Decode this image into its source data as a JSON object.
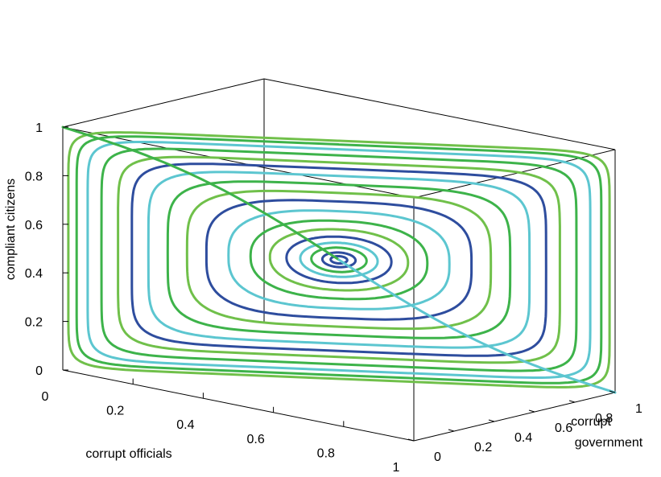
{
  "chart_data": {
    "type": "line",
    "subtype": "3d-phase-portrait",
    "title": "",
    "xlabel": "corrupt officials",
    "ylabel": "corrupt government",
    "zlabel": "compliant citizens",
    "xlim": [
      0,
      1
    ],
    "ylim": [
      0,
      1
    ],
    "zlim": [
      0,
      1
    ],
    "x_ticks": [
      "0",
      "0.2",
      "0.4",
      "0.6",
      "0.8",
      "1"
    ],
    "y_ticks": [
      "0",
      "0.2",
      "0.4",
      "0.6",
      "0.8",
      "1"
    ],
    "z_ticks": [
      "0",
      "0.2",
      "0.4",
      "0.6",
      "0.8",
      "1"
    ],
    "x_tick_values": [
      0,
      0.2,
      0.4,
      0.6,
      0.8,
      1
    ],
    "y_tick_values": [
      0,
      0.2,
      0.4,
      0.6,
      0.8,
      1
    ],
    "z_tick_values": [
      0,
      0.2,
      0.4,
      0.6,
      0.8,
      1
    ],
    "grid": false,
    "center": {
      "x": 0.5,
      "y": 0.5,
      "z": 0.5
    },
    "orbits": [
      {
        "amplitude": 0.03,
        "color": "#2e4d9e"
      },
      {
        "amplitude": 0.06,
        "color": "#2e4d9e"
      },
      {
        "amplitude": 0.1,
        "color": "#3db34a"
      },
      {
        "amplitude": 0.14,
        "color": "#5cc6d0"
      },
      {
        "amplitude": 0.19,
        "color": "#2e4d9e"
      },
      {
        "amplitude": 0.25,
        "color": "#70c04a"
      },
      {
        "amplitude": 0.32,
        "color": "#3db34a"
      },
      {
        "amplitude": 0.4,
        "color": "#5cc6d0"
      },
      {
        "amplitude": 0.48,
        "color": "#2e4d9e"
      },
      {
        "amplitude": 0.55,
        "color": "#70c04a"
      },
      {
        "amplitude": 0.62,
        "color": "#3db34a"
      },
      {
        "amplitude": 0.69,
        "color": "#5cc6d0"
      },
      {
        "amplitude": 0.75,
        "color": "#2e4d9e"
      },
      {
        "amplitude": 0.8,
        "color": "#70c04a"
      },
      {
        "amplitude": 0.86,
        "color": "#3db34a"
      },
      {
        "amplitude": 0.91,
        "color": "#5cc6d0"
      },
      {
        "amplitude": 0.95,
        "color": "#3db34a"
      },
      {
        "amplitude": 0.98,
        "color": "#70c04a"
      }
    ],
    "separatrices": [
      {
        "from": {
          "x": 0,
          "y": 0,
          "z": 1
        },
        "to": {
          "x": 0.5,
          "y": 0.5,
          "z": 0.5
        },
        "color": "#3db34a"
      },
      {
        "from": {
          "x": 1,
          "y": 1,
          "z": 0
        },
        "to": {
          "x": 0.5,
          "y": 0.5,
          "z": 0.5
        },
        "color": "#5cc6d0"
      }
    ],
    "colors": {
      "blue": "#2e4d9e",
      "green": "#3db34a",
      "lightgreen": "#70c04a",
      "cyan": "#5cc6d0",
      "axes": "#000000"
    }
  }
}
